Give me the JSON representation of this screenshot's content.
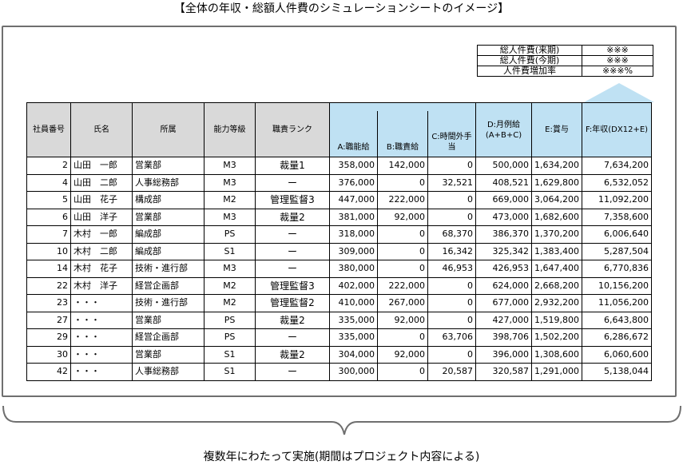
{
  "title": "【全体の年収・総額人件費のシミュレーションシートのイメージ】",
  "summary": [
    {
      "label": "総人件費(来期)",
      "value": "※※※"
    },
    {
      "label": "総人件費(今期)",
      "value": "※※※"
    },
    {
      "label": "人件費増加率",
      "value": "※※※%"
    }
  ],
  "headers": {
    "emp_no": "社員番号",
    "name": "氏名",
    "dept": "所属",
    "grade": "能力等級",
    "rank": "職責ランク",
    "a": "A:職能給",
    "b": "B:職責給",
    "c": "C:時間外手当",
    "d": "D:月例給(A+B+C)",
    "e": "E:賞与",
    "f": "F:年収(DX12+E)"
  },
  "rows": [
    {
      "no": "2",
      "name": "山田　一郎",
      "dept": "営業部",
      "grade": "M3",
      "rank": "裁量1",
      "a": "358,000",
      "b": "142,000",
      "c": "0",
      "d": "500,000",
      "e": "1,634,200",
      "f": "7,634,200"
    },
    {
      "no": "4",
      "name": "山田　二郎",
      "dept": "人事総務部",
      "grade": "M3",
      "rank": "ー",
      "a": "376,000",
      "b": "0",
      "c": "32,521",
      "d": "408,521",
      "e": "1,629,800",
      "f": "6,532,052"
    },
    {
      "no": "5",
      "name": "山田　花子",
      "dept": "構成部",
      "grade": "M2",
      "rank": "管理監督3",
      "a": "447,000",
      "b": "222,000",
      "c": "0",
      "d": "669,000",
      "e": "3,064,200",
      "f": "11,092,200"
    },
    {
      "no": "6",
      "name": "山田　洋子",
      "dept": "営業部",
      "grade": "M3",
      "rank": "裁量2",
      "a": "381,000",
      "b": "92,000",
      "c": "0",
      "d": "473,000",
      "e": "1,682,600",
      "f": "7,358,600"
    },
    {
      "no": "7",
      "name": "木村　一郎",
      "dept": "編成部",
      "grade": "PS",
      "rank": "ー",
      "a": "318,000",
      "b": "0",
      "c": "68,370",
      "d": "386,370",
      "e": "1,370,200",
      "f": "6,006,640"
    },
    {
      "no": "10",
      "name": "木村　二郎",
      "dept": "編成部",
      "grade": "S1",
      "rank": "ー",
      "a": "309,000",
      "b": "0",
      "c": "16,342",
      "d": "325,342",
      "e": "1,383,400",
      "f": "5,287,504"
    },
    {
      "no": "14",
      "name": "木村　花子",
      "dept": "技術・進行部",
      "grade": "M3",
      "rank": "ー",
      "a": "380,000",
      "b": "0",
      "c": "46,953",
      "d": "426,953",
      "e": "1,647,400",
      "f": "6,770,836"
    },
    {
      "no": "22",
      "name": "木村　洋子",
      "dept": "経営企画部",
      "grade": "M2",
      "rank": "管理監督3",
      "a": "402,000",
      "b": "222,000",
      "c": "0",
      "d": "624,000",
      "e": "2,668,200",
      "f": "10,156,200"
    },
    {
      "no": "23",
      "name": "・・・",
      "dept": "技術・進行部",
      "grade": "M2",
      "rank": "管理監督2",
      "a": "410,000",
      "b": "267,000",
      "c": "0",
      "d": "677,000",
      "e": "2,932,200",
      "f": "11,056,200"
    },
    {
      "no": "27",
      "name": "・・・",
      "dept": "営業部",
      "grade": "PS",
      "rank": "裁量2",
      "a": "335,000",
      "b": "92,000",
      "c": "0",
      "d": "427,000",
      "e": "1,519,800",
      "f": "6,643,800"
    },
    {
      "no": "29",
      "name": "・・・",
      "dept": "経営企画部",
      "grade": "PS",
      "rank": "ー",
      "a": "335,000",
      "b": "0",
      "c": "63,706",
      "d": "398,706",
      "e": "1,502,200",
      "f": "6,286,672"
    },
    {
      "no": "30",
      "name": "・・・",
      "dept": "営業部",
      "grade": "S1",
      "rank": "裁量2",
      "a": "304,000",
      "b": "92,000",
      "c": "0",
      "d": "396,000",
      "e": "1,308,600",
      "f": "6,060,600"
    },
    {
      "no": "42",
      "name": "・・・",
      "dept": "人事総務部",
      "grade": "S1",
      "rank": "ー",
      "a": "300,000",
      "b": "0",
      "c": "20,587",
      "d": "320,587",
      "e": "1,291,000",
      "f": "5,138,044"
    }
  ],
  "caption": "複数年にわたって実施(期間はプロジェクト内容による)",
  "colors": {
    "header_gray": "#d9d9d9",
    "header_blue": "#bfe1f3",
    "frame": "#6f6f6f"
  }
}
